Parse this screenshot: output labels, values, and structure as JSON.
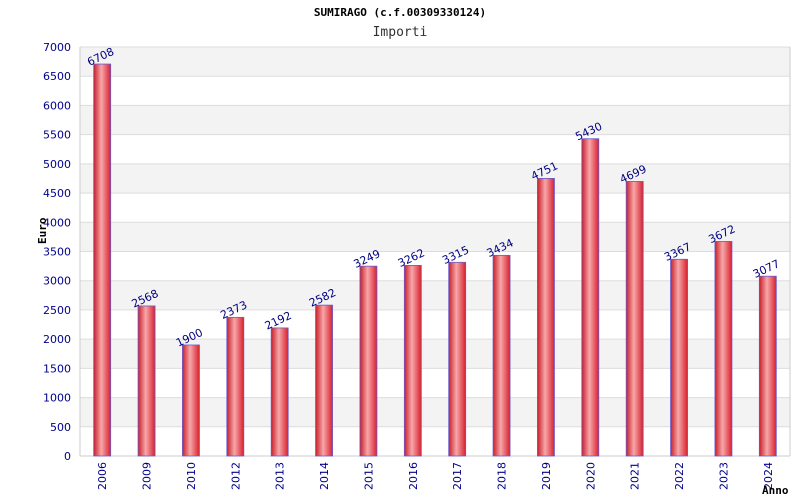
{
  "chart_data": {
    "type": "bar",
    "title": "SUMIRAGO (c.f.00309330124)",
    "subtitle": "Importi",
    "ylabel": "Euro",
    "xlabel": "Anno",
    "categories": [
      "2006",
      "2009",
      "2010",
      "2012",
      "2013",
      "2014",
      "2015",
      "2016",
      "2017",
      "2018",
      "2019",
      "2020",
      "2021",
      "2022",
      "2023",
      "2024"
    ],
    "values": [
      6708,
      2568,
      1900,
      2373,
      2192,
      2582,
      3249,
      3262,
      3315,
      3434,
      4751,
      5430,
      4699,
      3367,
      3672,
      3077
    ],
    "ylim": [
      0,
      7000
    ],
    "yticks": [
      0,
      500,
      1000,
      1500,
      2000,
      2500,
      3000,
      3500,
      4000,
      4500,
      5000,
      5500,
      6000,
      6500,
      7000
    ],
    "grid": true,
    "colors": {
      "bar_fill": "#e8303a",
      "bar_highlight": "#f7a7aa",
      "bar_edge": "#6a5acd",
      "label_text": "#000080",
      "tick_text": "#00008b",
      "band": "#f3f3f3"
    }
  }
}
